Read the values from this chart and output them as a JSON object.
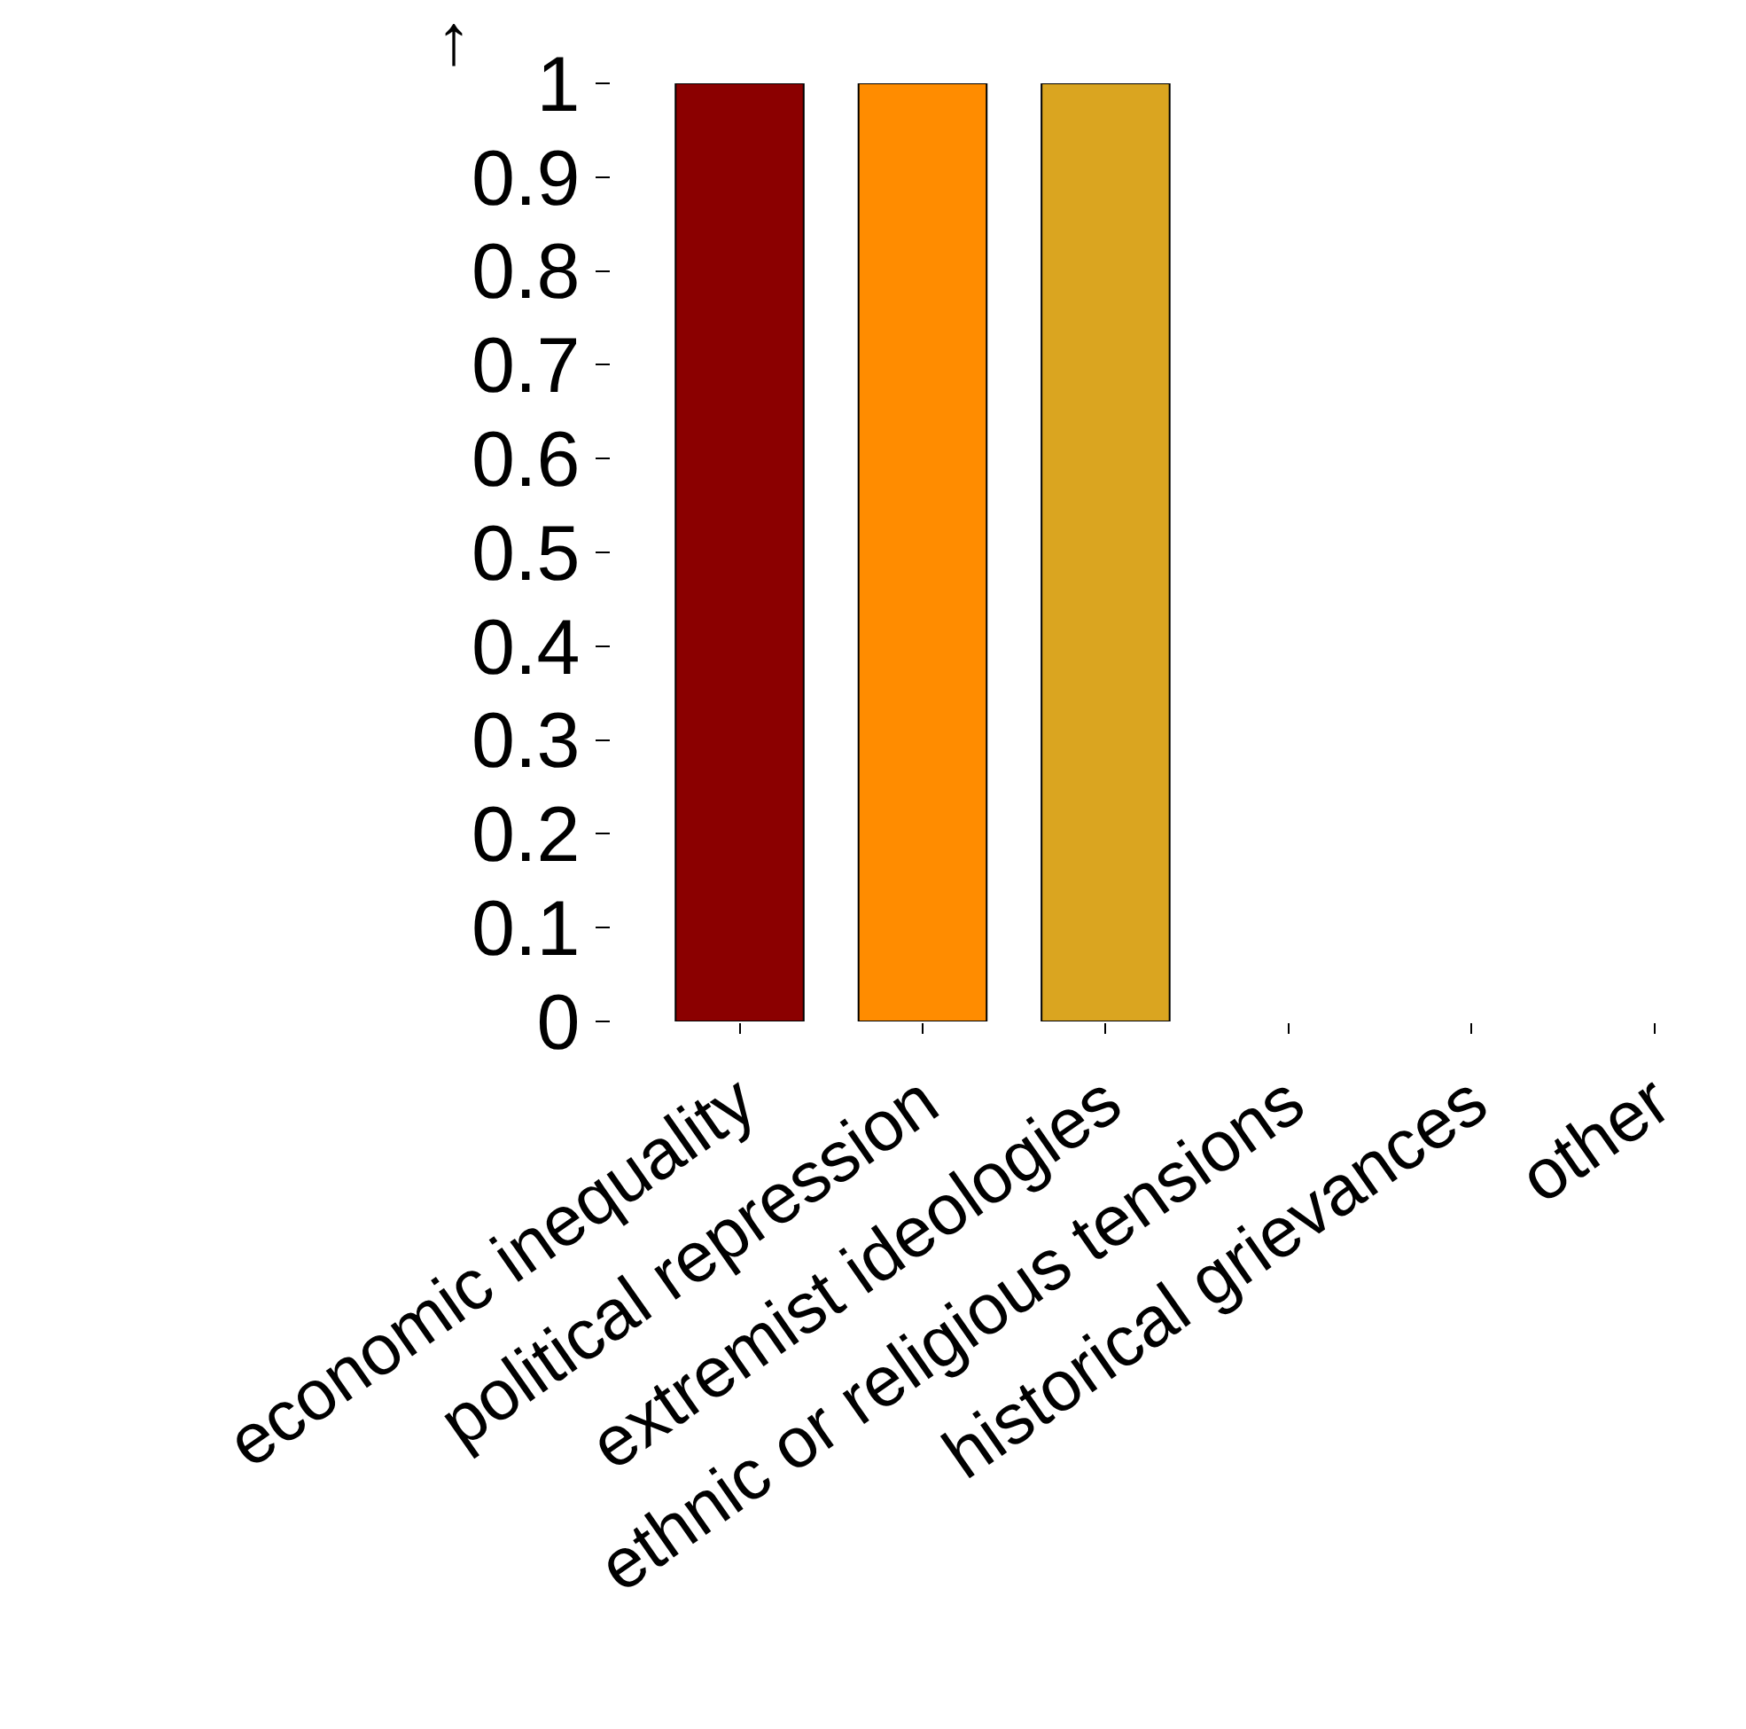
{
  "chart_data": {
    "type": "bar",
    "ylabel": "↑",
    "categories": [
      "economic inequality",
      "political repression",
      "extremist ideologies",
      "ethnic or religious tensions",
      "historical grievances",
      "other"
    ],
    "values": [
      1,
      1,
      1,
      null,
      null,
      null
    ],
    "colors": [
      "#8b0000",
      "#ff8c00",
      "#daa520",
      "#daa520",
      "#daa520",
      "#daa520"
    ],
    "ylim": [
      0,
      1
    ],
    "yticks": [
      0,
      0.1,
      0.2,
      0.3,
      0.4,
      0.5,
      0.6,
      0.7,
      0.8,
      0.9,
      1
    ],
    "legend": false
  }
}
